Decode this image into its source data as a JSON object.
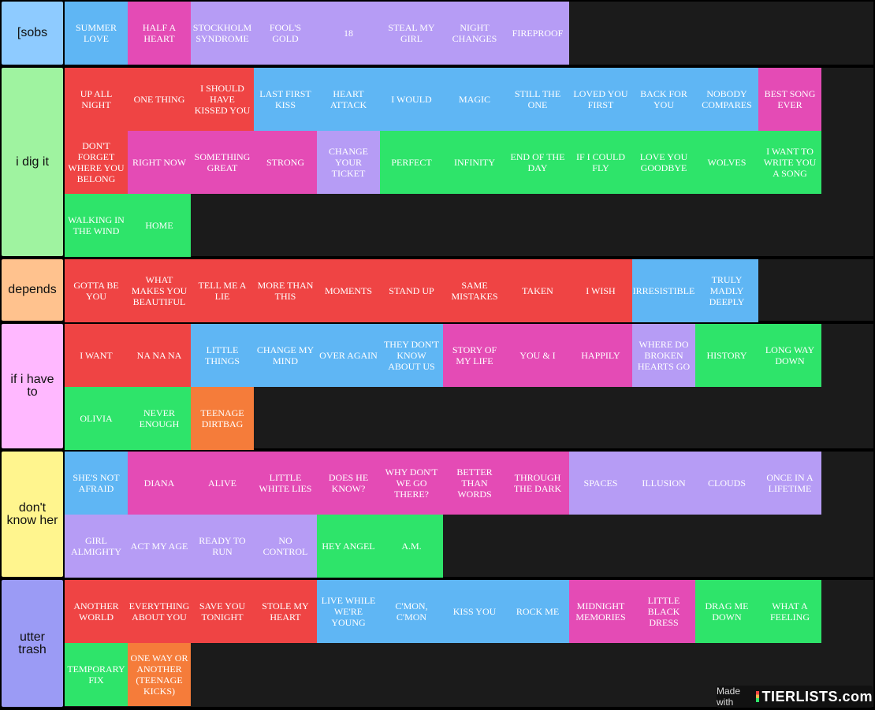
{
  "tiers": [
    {
      "label": "[sobs",
      "color": "#8ecbff",
      "items": [
        {
          "text": "SUMMER LOVE",
          "color": "blue"
        },
        {
          "text": "HALF A HEART",
          "color": "pink"
        },
        {
          "text": "STOCKHOLM SYNDROME",
          "color": "lav"
        },
        {
          "text": "FOOL'S GOLD",
          "color": "lav"
        },
        {
          "text": "18",
          "color": "lav"
        },
        {
          "text": "STEAL MY GIRL",
          "color": "lav"
        },
        {
          "text": "NIGHT CHANGES",
          "color": "lav"
        },
        {
          "text": "FIREPROOF",
          "color": "lav"
        }
      ]
    },
    {
      "label": "i dig it",
      "color": "#9ff3a0",
      "items": [
        {
          "text": "UP ALL NIGHT",
          "color": "red"
        },
        {
          "text": "ONE THING",
          "color": "red"
        },
        {
          "text": "I SHOULD HAVE KISSED YOU",
          "color": "red"
        },
        {
          "text": "LAST FIRST KISS",
          "color": "blue"
        },
        {
          "text": "HEART ATTACK",
          "color": "blue"
        },
        {
          "text": "I WOULD",
          "color": "blue"
        },
        {
          "text": "MAGIC",
          "color": "blue"
        },
        {
          "text": "STILL THE ONE",
          "color": "blue"
        },
        {
          "text": "LOVED YOU FIRST",
          "color": "blue"
        },
        {
          "text": "BACK FOR YOU",
          "color": "blue"
        },
        {
          "text": "NOBODY COMPARES",
          "color": "blue"
        },
        {
          "text": "BEST SONG EVER",
          "color": "pink"
        },
        {
          "text": "DON'T FORGET WHERE YOU BELONG",
          "color": "red"
        },
        {
          "text": "RIGHT NOW",
          "color": "pink"
        },
        {
          "text": "SOMETHING GREAT",
          "color": "pink"
        },
        {
          "text": "STRONG",
          "color": "pink"
        },
        {
          "text": "CHANGE YOUR TICKET",
          "color": "lav"
        },
        {
          "text": "PERFECT",
          "color": "green"
        },
        {
          "text": "INFINITY",
          "color": "green"
        },
        {
          "text": "END OF THE DAY",
          "color": "green"
        },
        {
          "text": "IF I COULD FLY",
          "color": "green"
        },
        {
          "text": "LOVE YOU GOODBYE",
          "color": "green"
        },
        {
          "text": "WOLVES",
          "color": "green"
        },
        {
          "text": "I WANT TO WRITE YOU A SONG",
          "color": "green"
        },
        {
          "text": "WALKING IN THE WIND",
          "color": "green"
        },
        {
          "text": "HOME",
          "color": "green"
        }
      ]
    },
    {
      "label": "depends",
      "color": "#ffc28e",
      "items": [
        {
          "text": "GOTTA BE YOU",
          "color": "red"
        },
        {
          "text": "WHAT MAKES YOU BEAUTIFUL",
          "color": "red"
        },
        {
          "text": "TELL ME A LIE",
          "color": "red"
        },
        {
          "text": "MORE THAN THIS",
          "color": "red"
        },
        {
          "text": "MOMENTS",
          "color": "red"
        },
        {
          "text": "STAND UP",
          "color": "red"
        },
        {
          "text": "SAME MISTAKES",
          "color": "red"
        },
        {
          "text": "TAKEN",
          "color": "red"
        },
        {
          "text": "I WISH",
          "color": "red"
        },
        {
          "text": "IRRESISTIBLE",
          "color": "blue"
        },
        {
          "text": "TRULY MADLY DEEPLY",
          "color": "blue"
        }
      ]
    },
    {
      "label": "if i have to",
      "color": "#ffb8ff",
      "items": [
        {
          "text": "I WANT",
          "color": "red"
        },
        {
          "text": "NA NA NA",
          "color": "red"
        },
        {
          "text": "LITTLE THINGS",
          "color": "blue"
        },
        {
          "text": "CHANGE MY MIND",
          "color": "blue"
        },
        {
          "text": "OVER AGAIN",
          "color": "blue"
        },
        {
          "text": "THEY DON'T KNOW ABOUT US",
          "color": "blue"
        },
        {
          "text": "STORY OF MY LIFE",
          "color": "pink"
        },
        {
          "text": "YOU & I",
          "color": "pink"
        },
        {
          "text": "HAPPILY",
          "color": "pink"
        },
        {
          "text": "WHERE DO BROKEN HEARTS GO",
          "color": "lav"
        },
        {
          "text": "HISTORY",
          "color": "green"
        },
        {
          "text": "LONG WAY DOWN",
          "color": "green"
        },
        {
          "text": "OLIVIA",
          "color": "green"
        },
        {
          "text": "NEVER ENOUGH",
          "color": "green"
        },
        {
          "text": "TEENAGE DIRTBAG",
          "color": "orange"
        }
      ]
    },
    {
      "label": "don't know her",
      "color": "#fff58e",
      "items": [
        {
          "text": "SHE'S NOT AFRAID",
          "color": "blue"
        },
        {
          "text": "DIANA",
          "color": "pink"
        },
        {
          "text": "ALIVE",
          "color": "pink"
        },
        {
          "text": "LITTLE WHITE LIES",
          "color": "pink"
        },
        {
          "text": "DOES HE KNOW?",
          "color": "pink"
        },
        {
          "text": "WHY DON'T WE GO THERE?",
          "color": "pink"
        },
        {
          "text": "BETTER THAN WORDS",
          "color": "pink"
        },
        {
          "text": "THROUGH THE DARK",
          "color": "pink"
        },
        {
          "text": "SPACES",
          "color": "lav"
        },
        {
          "text": "ILLUSION",
          "color": "lav"
        },
        {
          "text": "CLOUDS",
          "color": "lav"
        },
        {
          "text": "ONCE IN A LIFETIME",
          "color": "lav"
        },
        {
          "text": "GIRL ALMIGHTY",
          "color": "lav"
        },
        {
          "text": "ACT MY AGE",
          "color": "lav"
        },
        {
          "text": "READY TO RUN",
          "color": "lav"
        },
        {
          "text": "NO CONTROL",
          "color": "lav"
        },
        {
          "text": "HEY ANGEL",
          "color": "green"
        },
        {
          "text": "A.M.",
          "color": "green"
        }
      ]
    },
    {
      "label": "utter trash",
      "color": "#9b9bf5",
      "items": [
        {
          "text": "ANOTHER WORLD",
          "color": "red"
        },
        {
          "text": "EVERYTHING ABOUT YOU",
          "color": "red"
        },
        {
          "text": "SAVE YOU TONIGHT",
          "color": "red"
        },
        {
          "text": "STOLE MY HEART",
          "color": "red"
        },
        {
          "text": "LIVE WHILE WE'RE YOUNG",
          "color": "blue"
        },
        {
          "text": "C'MON, C'MON",
          "color": "blue"
        },
        {
          "text": "KISS YOU",
          "color": "blue"
        },
        {
          "text": "ROCK ME",
          "color": "blue"
        },
        {
          "text": "MIDNIGHT MEMORIES",
          "color": "pink"
        },
        {
          "text": "LITTLE BLACK DRESS",
          "color": "pink"
        },
        {
          "text": "DRAG ME DOWN",
          "color": "green"
        },
        {
          "text": "WHAT A FEELING",
          "color": "green"
        },
        {
          "text": "TEMPORARY FIX",
          "color": "green"
        },
        {
          "text": "ONE WAY OR ANOTHER (TEENAGE KICKS)",
          "color": "orange"
        }
      ]
    }
  ],
  "watermark": {
    "made_with": "Made with",
    "logo": "TIERLISTS.com"
  }
}
